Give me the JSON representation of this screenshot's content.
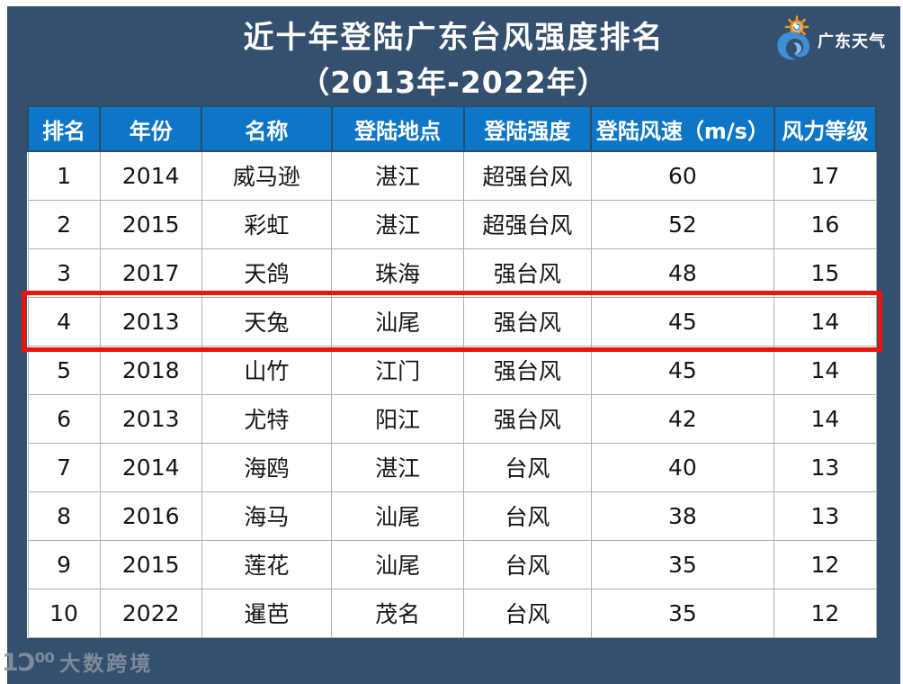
{
  "header": {
    "brand": {
      "label": "广东天气"
    }
  },
  "watermark": {
    "glyph": "1Ɔ⁰⁰",
    "label": "大数跨境"
  },
  "colors": {
    "frame_bg": "#34506e",
    "header_bg": "#0e76c6",
    "highlight": "#e8140e",
    "cell_border": "#b0b0b0",
    "sun": "#f6921e",
    "swirl": "#3e8fd8"
  },
  "chart_data": {
    "type": "table",
    "title": "近十年登陆广东台风强度排名",
    "subtitle": "（2013年-2022年）",
    "columns": [
      "排名",
      "年份",
      "名称",
      "登陆地点",
      "登陆强度",
      "登陆风速（m/s）",
      "风力等级"
    ],
    "rows": [
      [
        "1",
        "2014",
        "威马逊",
        "湛江",
        "超强台风",
        "60",
        "17"
      ],
      [
        "2",
        "2015",
        "彩虹",
        "湛江",
        "超强台风",
        "52",
        "16"
      ],
      [
        "3",
        "2017",
        "天鸽",
        "珠海",
        "强台风",
        "48",
        "15"
      ],
      [
        "4",
        "2013",
        "天兔",
        "汕尾",
        "强台风",
        "45",
        "14"
      ],
      [
        "5",
        "2018",
        "山竹",
        "江门",
        "强台风",
        "45",
        "14"
      ],
      [
        "6",
        "2013",
        "尤特",
        "阳江",
        "强台风",
        "42",
        "14"
      ],
      [
        "7",
        "2014",
        "海鸥",
        "湛江",
        "台风",
        "40",
        "13"
      ],
      [
        "8",
        "2016",
        "海马",
        "汕尾",
        "台风",
        "38",
        "13"
      ],
      [
        "9",
        "2015",
        "莲花",
        "汕尾",
        "台风",
        "35",
        "12"
      ],
      [
        "10",
        "2022",
        "暹芭",
        "茂名",
        "台风",
        "35",
        "12"
      ]
    ],
    "highlighted_row_rank": "4",
    "grid": true,
    "legend_position": "none"
  }
}
